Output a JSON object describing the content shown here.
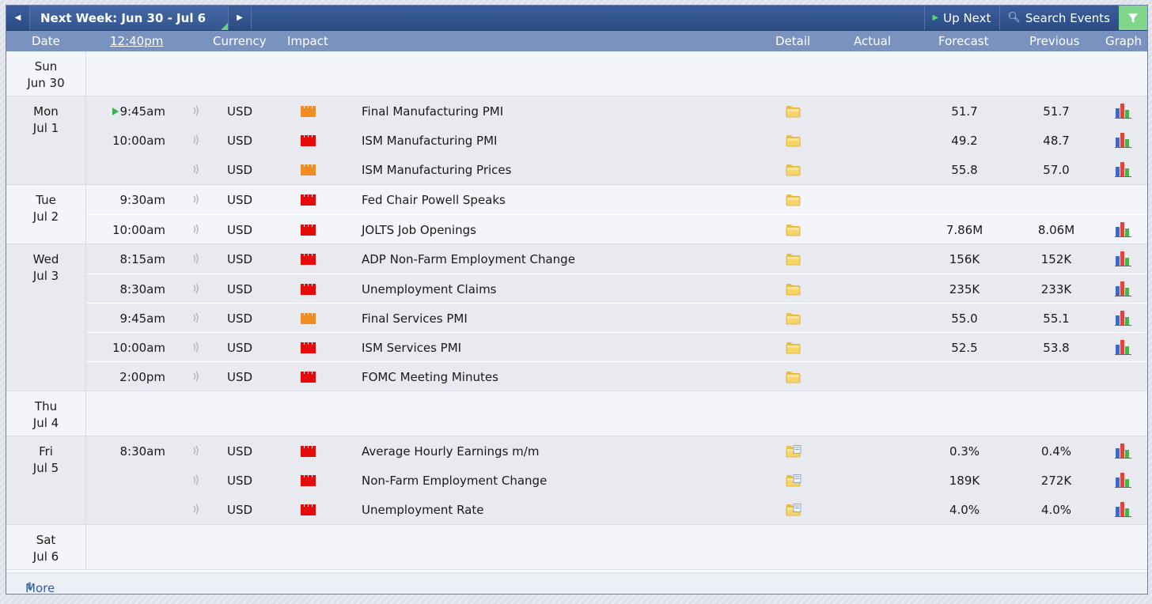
{
  "toolbar": {
    "prev_icon": "triangle-left-icon",
    "next_icon": "triangle-right-icon",
    "week_title": "Next Week: Jun 30 - Jul 6",
    "up_next": "Up Next",
    "search_events": "Search Events",
    "filter_icon": "filter-icon"
  },
  "columns": {
    "date": "Date",
    "time": "12:40pm",
    "currency": "Currency",
    "impact": "Impact",
    "detail": "Detail",
    "actual": "Actual",
    "forecast": "Forecast",
    "previous": "Previous",
    "graph": "Graph"
  },
  "colors": {
    "high_impact": "#e60b0b",
    "medium_impact": "#f08c22",
    "header_blue": "#2c4b84",
    "column_header": "#7a92bf",
    "filter_green": "#7fd58a"
  },
  "days": [
    {
      "day": "Sun",
      "date": "Jun 30",
      "events": []
    },
    {
      "day": "Mon",
      "date": "Jul 1",
      "events": [
        {
          "time": "9:45am",
          "up_next": true,
          "currency": "USD",
          "impact": "orange",
          "name": "Final Manufacturing PMI",
          "detail_icon": "folder",
          "forecast": "51.7",
          "previous": "51.7",
          "graph": true
        },
        {
          "time": "10:00am",
          "currency": "USD",
          "impact": "red",
          "name": "ISM Manufacturing PMI",
          "detail_icon": "folder",
          "forecast": "49.2",
          "previous": "48.7",
          "graph": true
        },
        {
          "time": "",
          "currency": "USD",
          "impact": "orange",
          "name": "ISM Manufacturing Prices",
          "detail_icon": "folder",
          "forecast": "55.8",
          "previous": "57.0",
          "graph": true
        }
      ]
    },
    {
      "day": "Tue",
      "date": "Jul 2",
      "events": [
        {
          "time": "9:30am",
          "currency": "USD",
          "impact": "red",
          "name": "Fed Chair Powell Speaks",
          "detail_icon": "folder",
          "forecast": "",
          "previous": "",
          "graph": false
        },
        {
          "time": "10:00am",
          "currency": "USD",
          "impact": "red",
          "name": "JOLTS Job Openings",
          "detail_icon": "folder",
          "forecast": "7.86M",
          "previous": "8.06M",
          "graph": true
        }
      ]
    },
    {
      "day": "Wed",
      "date": "Jul 3",
      "events": [
        {
          "time": "8:15am",
          "currency": "USD",
          "impact": "red",
          "name": "ADP Non-Farm Employment Change",
          "detail_icon": "folder",
          "forecast": "156K",
          "previous": "152K",
          "graph": true
        },
        {
          "time": "8:30am",
          "currency": "USD",
          "impact": "red",
          "name": "Unemployment Claims",
          "detail_icon": "folder",
          "forecast": "235K",
          "previous": "233K",
          "graph": true
        },
        {
          "time": "9:45am",
          "currency": "USD",
          "impact": "orange",
          "name": "Final Services PMI",
          "detail_icon": "folder",
          "forecast": "55.0",
          "previous": "55.1",
          "graph": true
        },
        {
          "time": "10:00am",
          "currency": "USD",
          "impact": "red",
          "name": "ISM Services PMI",
          "detail_icon": "folder",
          "forecast": "52.5",
          "previous": "53.8",
          "graph": true
        },
        {
          "time": "2:00pm",
          "currency": "USD",
          "impact": "red",
          "name": "FOMC Meeting Minutes",
          "detail_icon": "folder",
          "forecast": "",
          "previous": "",
          "graph": false
        }
      ]
    },
    {
      "day": "Thu",
      "date": "Jul 4",
      "events": []
    },
    {
      "day": "Fri",
      "date": "Jul 5",
      "events": [
        {
          "time": "8:30am",
          "currency": "USD",
          "impact": "red",
          "name": "Average Hourly Earnings m/m",
          "detail_icon": "folder-document",
          "forecast": "0.3%",
          "previous": "0.4%",
          "graph": true
        },
        {
          "time": "",
          "currency": "USD",
          "impact": "red",
          "name": "Non-Farm Employment Change",
          "detail_icon": "folder-document",
          "forecast": "189K",
          "previous": "272K",
          "graph": true
        },
        {
          "time": "",
          "currency": "USD",
          "impact": "red",
          "name": "Unemployment Rate",
          "detail_icon": "folder-document",
          "forecast": "4.0%",
          "previous": "4.0%",
          "graph": true
        }
      ]
    },
    {
      "day": "Sat",
      "date": "Jul 6",
      "events": []
    }
  ],
  "footer": {
    "more": "More"
  }
}
